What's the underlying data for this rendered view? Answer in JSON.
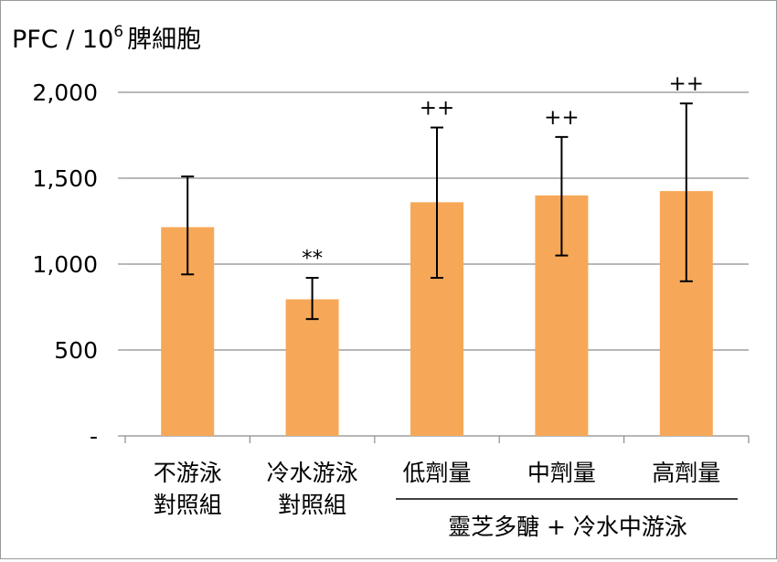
{
  "chart_data": {
    "type": "bar",
    "title": "",
    "ylabel": "PFC / 10",
    "ylabel_superscript": "6",
    "ylabel_suffix": "脾細胞",
    "xlabel": "",
    "ylim": [
      0,
      2000
    ],
    "yticks": [
      0,
      500,
      1000,
      1500,
      2000
    ],
    "ytick_labels": [
      "-",
      "500",
      "1,000",
      "1,500",
      "2,000"
    ],
    "grid": true,
    "bar_color": "#f6a858",
    "categories": [
      [
        "不游泳",
        "對照組"
      ],
      [
        "冷水游泳",
        "對照組"
      ],
      [
        "低劑量"
      ],
      [
        "中劑量"
      ],
      [
        "高劑量"
      ]
    ],
    "series": [
      {
        "name": "PFC",
        "values": [
          1215,
          795,
          1360,
          1400,
          1425
        ],
        "error_low": [
          940,
          680,
          920,
          1050,
          900
        ],
        "error_high": [
          1510,
          920,
          1795,
          1740,
          1935
        ]
      }
    ],
    "annotations": [
      "",
      "**",
      "++",
      "++",
      "++"
    ],
    "group_label": "靈芝多醣 + 冷水中游泳"
  }
}
